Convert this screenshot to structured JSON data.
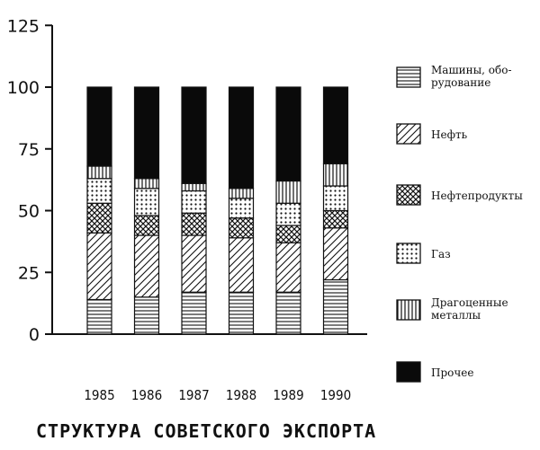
{
  "chart_data": {
    "type": "bar",
    "stacked": true,
    "title": "СТРУКТУРА СОВЕТСКОГО ЭКСПОРТА",
    "xlabel": "",
    "ylabel": "",
    "ylim": [
      0,
      125
    ],
    "yticks": [
      "0",
      "25",
      "50",
      "75",
      "100",
      "125"
    ],
    "categories": [
      "1985",
      "1986",
      "1987",
      "1988",
      "1989",
      "1990"
    ],
    "grid": false,
    "legend_position": "right",
    "series": [
      {
        "name": "Машины, обо-рудование",
        "pattern": "horizontal-lines",
        "values": [
          14,
          15,
          17,
          17,
          17,
          22
        ]
      },
      {
        "name": "Нефть",
        "pattern": "diagonal-lines",
        "values": [
          27,
          25,
          23,
          22,
          20,
          21
        ]
      },
      {
        "name": "Нефтепродукты",
        "pattern": "crosshatch",
        "values": [
          12,
          8,
          9,
          8,
          7,
          7
        ]
      },
      {
        "name": "Газ",
        "pattern": "dots",
        "values": [
          10,
          11,
          9,
          8,
          9,
          10
        ]
      },
      {
        "name": "Драгоценные металлы",
        "pattern": "vertical-lines",
        "values": [
          5,
          4,
          3,
          4,
          9,
          9
        ]
      },
      {
        "name": "Прочее",
        "pattern": "solid-black",
        "values": [
          32,
          37,
          39,
          41,
          38,
          31
        ]
      }
    ]
  }
}
